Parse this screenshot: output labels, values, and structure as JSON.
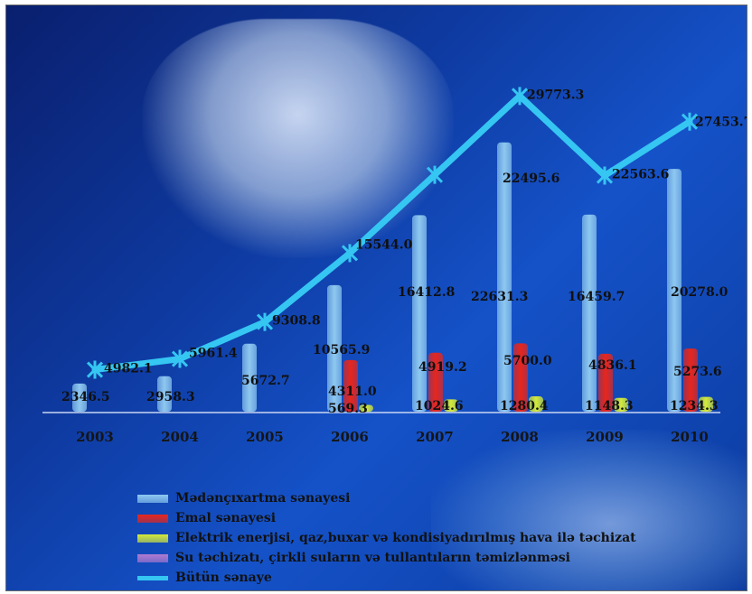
{
  "chart_data": {
    "type": "bar",
    "categories": [
      "2003",
      "2004",
      "2005",
      "2006",
      "2007",
      "2008",
      "2009",
      "2010"
    ],
    "series": [
      {
        "name": "Mədənçıxartma sənayesi",
        "color": "#8ec8f0",
        "values": [
          2346.5,
          2958.3,
          5672.7,
          10565.9,
          16412.8,
          22495.6,
          16459.7,
          20278.0
        ],
        "labels": [
          "2346.5",
          "2958.3",
          "5672.7",
          "10565.9",
          "16412.8",
          "22495.6",
          "16459.7",
          "20278.0"
        ]
      },
      {
        "name": "Emal sənayesi",
        "color": "#e8261c",
        "values": [
          null,
          null,
          null,
          4311.0,
          4919.2,
          5700.0,
          4836.1,
          5273.6
        ],
        "labels": [
          "",
          "",
          "",
          "4311.0",
          "4919.2",
          "5700.0",
          "4836.1",
          "5273.6"
        ]
      },
      {
        "name": "Elektrik enerjisi, qaz,buxar və kondisiyadırılmış hava ilə təchizat",
        "color": "#d4ea3a",
        "values": [
          null,
          null,
          null,
          569.3,
          1024.6,
          1280.4,
          1148.3,
          1234.3
        ],
        "labels": [
          "",
          "",
          "",
          "569.3",
          "1024.6",
          "1280.4",
          "1148.3",
          "1234.3"
        ]
      },
      {
        "name": "Su təchizatı, çirkli suların və tullantıların təmizlənməsi",
        "color": "#b07ad0",
        "values": [
          null,
          null,
          null,
          null,
          null,
          null,
          null,
          null
        ],
        "labels": [
          "",
          "",
          "",
          "",
          "",
          "",
          "",
          ""
        ]
      },
      {
        "name": "Bütün sənaye",
        "type": "line",
        "color": "#35c6f2",
        "values": [
          4982.1,
          5961.4,
          9308.8,
          15544.0,
          22631.3,
          29773.3,
          22563.6,
          27453.7
        ],
        "labels": [
          "4982.1",
          "5961.4",
          "9308.8",
          "15544.0",
          "22631.3",
          "29773.3",
          "22563.6",
          "27453.7"
        ]
      }
    ]
  }
}
